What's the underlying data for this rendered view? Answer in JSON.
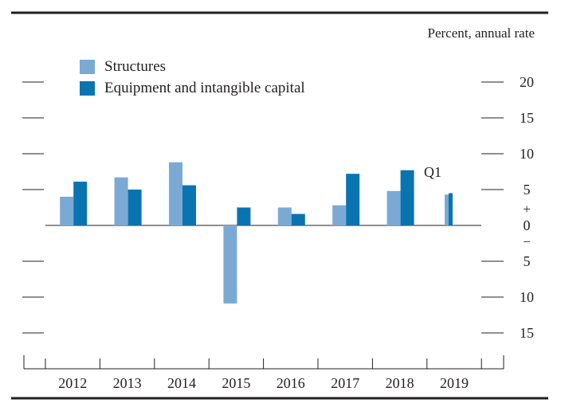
{
  "chart_data": {
    "type": "bar",
    "unit_label": "Percent, annual rate",
    "categories": [
      "2012",
      "2013",
      "2014",
      "2015",
      "2016",
      "2017",
      "2018",
      "2019"
    ],
    "series": [
      {
        "name": "Structures",
        "color": "#7aaad4",
        "values": [
          4.0,
          6.7,
          8.8,
          -10.9,
          2.5,
          2.8,
          4.8,
          4.3
        ]
      },
      {
        "name": "Equipment and intangible capital",
        "color": "#0a74b1",
        "values": [
          6.1,
          5.0,
          5.6,
          2.5,
          1.6,
          7.2,
          7.7,
          4.5
        ]
      }
    ],
    "partial_period": {
      "category": "2019",
      "label": "Q1"
    },
    "ylim": [
      -15,
      20
    ],
    "yticks": [
      20,
      15,
      10,
      5,
      0,
      -5,
      -10,
      -15
    ],
    "ytick_labels": [
      "20",
      "15",
      "10",
      "5",
      "0",
      "5",
      "10",
      "15"
    ],
    "zero_sign_labels": {
      "positive": "+",
      "negative": "−"
    },
    "legend_position": "top-left"
  }
}
